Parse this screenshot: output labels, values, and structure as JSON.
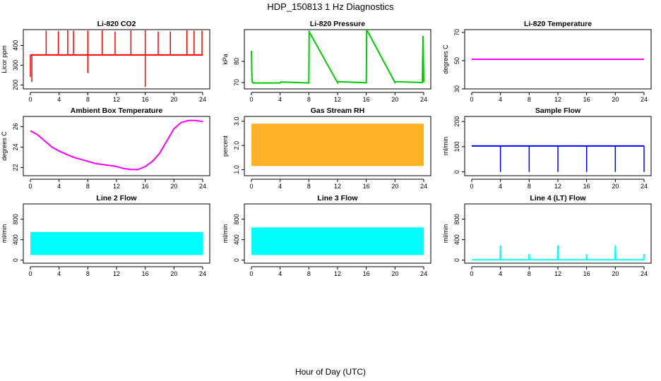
{
  "figure": {
    "title": "HDP_150813  1 Hz Diagnostics",
    "xlabel": "Hour of Day (UTC)"
  },
  "chart_data": [
    {
      "type": "line",
      "title": "Li-820 CO2",
      "ylabel": "Licor ppm",
      "color": "#ff0000",
      "xlim": [
        0,
        24
      ],
      "xticks": [
        "0",
        "4",
        "8",
        "12",
        "16",
        "20",
        "24"
      ],
      "ylim": [
        180,
        480
      ],
      "yticks": [
        "200",
        "300",
        "400"
      ],
      "baseline": 352,
      "series": [
        {
          "x": [
            0,
            0.2,
            2.2,
            3.9,
            5.2,
            6.0,
            8.0,
            8.0,
            10.0,
            11.8,
            14.0,
            16.0,
            16.0,
            17.8,
            19.5,
            21.8,
            22.8,
            23.9
          ],
          "y": [
            240,
            215,
            475,
            472,
            478,
            475,
            260,
            475,
            478,
            470,
            478,
            190,
            478,
            470,
            470,
            476,
            475,
            475
          ]
        }
      ]
    },
    {
      "type": "line",
      "title": "Li-820 Pressure",
      "ylabel": "kPa",
      "color": "#00cc00",
      "xlim": [
        0,
        24
      ],
      "xticks": [
        "0",
        "4",
        "8",
        "12",
        "16",
        "20",
        "24"
      ],
      "ylim": [
        67,
        95
      ],
      "yticks": [
        "70",
        "80"
      ],
      "series": [
        {
          "x": [
            0,
            0.05,
            0.1,
            0.3,
            4,
            4.1,
            8,
            8.05,
            12,
            12.05,
            16,
            16.05,
            20,
            20.05,
            23.8,
            23.9,
            24
          ],
          "y": [
            85,
            76,
            70.3,
            69.8,
            69.8,
            70.3,
            69.8,
            94,
            69.9,
            70.4,
            69.9,
            95,
            70.0,
            70.4,
            70.0,
            92,
            70.2
          ]
        }
      ]
    },
    {
      "type": "line",
      "title": "Li-820 Temperature",
      "ylabel": "degrees C",
      "color": "#ff00ff",
      "xlim": [
        0,
        24
      ],
      "xticks": [
        "0",
        "4",
        "8",
        "12",
        "16",
        "20",
        "24"
      ],
      "ylim": [
        30,
        72
      ],
      "yticks": [
        "30",
        "50",
        "70"
      ],
      "series": [
        {
          "x": [
            0,
            24
          ],
          "y": [
            51,
            51
          ]
        }
      ]
    },
    {
      "type": "line",
      "title": "Ambient Box Temperature",
      "ylabel": "degrees C",
      "color": "#ff00ff",
      "xlim": [
        0,
        24
      ],
      "xticks": [
        "0",
        "4",
        "8",
        "12",
        "16",
        "20",
        "24"
      ],
      "ylim": [
        21.2,
        27
      ],
      "yticks": [
        "22",
        "24",
        "26"
      ],
      "series": [
        {
          "x": [
            0,
            1,
            2,
            3,
            4,
            5,
            6,
            7,
            8,
            9,
            10,
            11,
            12,
            13,
            14,
            15,
            16,
            17,
            18,
            19,
            20,
            21,
            22,
            23,
            24
          ],
          "y": [
            25.6,
            25.2,
            24.6,
            24.0,
            23.6,
            23.3,
            23.0,
            22.8,
            22.6,
            22.4,
            22.3,
            22.2,
            22.1,
            21.9,
            21.8,
            21.8,
            22.1,
            22.6,
            23.4,
            24.6,
            25.8,
            26.4,
            26.6,
            26.6,
            26.5
          ]
        }
      ]
    },
    {
      "type": "line",
      "title": "Gas Stream RH",
      "ylabel": "percent",
      "color": "#ffa500",
      "xlim": [
        0,
        24
      ],
      "xticks": [
        "0",
        "4",
        "8",
        "12",
        "16",
        "20",
        "24"
      ],
      "ylim": [
        0.75,
        3.2
      ],
      "yticks": [
        "1.0",
        "2.0",
        "3.0"
      ],
      "band": [
        1.15,
        2.9
      ],
      "series": [
        {
          "x": [
            0,
            24
          ],
          "y": [
            1.15,
            2.9
          ]
        }
      ]
    },
    {
      "type": "line",
      "title": "Sample Flow",
      "ylabel": "ml/min",
      "color": "#0000ff",
      "xlim": [
        0,
        24
      ],
      "xticks": [
        "0",
        "4",
        "8",
        "12",
        "16",
        "20",
        "24"
      ],
      "ylim": [
        -15,
        220
      ],
      "yticks": [
        "0",
        "100",
        "200"
      ],
      "baseline": 103,
      "series": [
        {
          "x": [
            0,
            3.9,
            4.0,
            4.1,
            7.9,
            8.0,
            8.1,
            11.9,
            12.0,
            12.1,
            15.9,
            16.0,
            16.1,
            19.9,
            20.0,
            20.1,
            23.9,
            24
          ],
          "y": [
            103,
            103,
            0,
            103,
            103,
            0,
            103,
            103,
            0,
            103,
            103,
            0,
            103,
            103,
            0,
            103,
            103,
            0
          ]
        }
      ]
    },
    {
      "type": "area",
      "title": "Line 2 Flow",
      "ylabel": "ml/min",
      "color": "#00ffff",
      "xlim": [
        0,
        24
      ],
      "xticks": [
        "0",
        "4",
        "8",
        "12",
        "16",
        "20",
        "24"
      ],
      "ylim": [
        -60,
        1100
      ],
      "yticks": [
        "0",
        "400",
        "800"
      ],
      "band": [
        100,
        550
      ],
      "series": [
        {
          "x": [
            0,
            24
          ],
          "y": [
            100,
            550
          ]
        }
      ]
    },
    {
      "type": "area",
      "title": "Line 3 Flow",
      "ylabel": "ml/min",
      "color": "#00ffff",
      "xlim": [
        0,
        24
      ],
      "xticks": [
        "0",
        "4",
        "8",
        "12",
        "16",
        "20",
        "24"
      ],
      "ylim": [
        -60,
        1100
      ],
      "yticks": [
        "0",
        "400",
        "800"
      ],
      "band": [
        100,
        640
      ],
      "series": [
        {
          "x": [
            0,
            24
          ],
          "y": [
            100,
            640
          ]
        }
      ]
    },
    {
      "type": "line",
      "title": "Line 4 (LT) Flow",
      "ylabel": "ml/min",
      "color": "#00ffff",
      "xlim": [
        0,
        24
      ],
      "xticks": [
        "0",
        "4",
        "8",
        "12",
        "16",
        "20",
        "24"
      ],
      "ylim": [
        -60,
        1100
      ],
      "yticks": [
        "0",
        "400",
        "800"
      ],
      "series": [
        {
          "x": [
            0,
            3.95,
            4.0,
            4.05,
            7.95,
            8.0,
            8.05,
            11.95,
            12.0,
            12.05,
            15.95,
            16.0,
            16.05,
            19.95,
            20.0,
            20.05,
            23.95,
            24.0
          ],
          "y": [
            5,
            5,
            290,
            5,
            5,
            120,
            5,
            5,
            290,
            5,
            5,
            120,
            5,
            5,
            290,
            5,
            5,
            120
          ]
        }
      ]
    }
  ]
}
